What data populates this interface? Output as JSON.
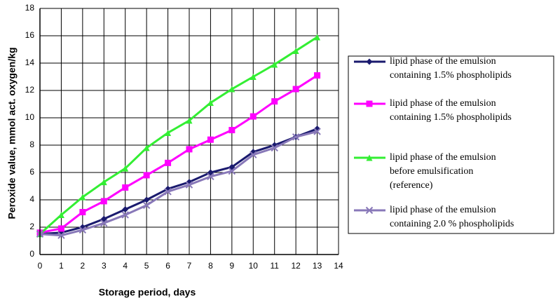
{
  "chart_data": {
    "type": "line",
    "x_label": "Storage period, days",
    "y_label": "Peroxide value, mmol act. oxygen/kg",
    "x": [
      0,
      1,
      2,
      3,
      4,
      5,
      6,
      7,
      8,
      9,
      10,
      11,
      12,
      13,
      14
    ],
    "xlim": [
      0,
      14
    ],
    "xticks": [
      0,
      1,
      2,
      3,
      4,
      5,
      6,
      7,
      8,
      9,
      10,
      11,
      12,
      13,
      14
    ],
    "ylim": [
      0,
      18
    ],
    "yticks": [
      0,
      2,
      4,
      6,
      8,
      10,
      12,
      14,
      16,
      18
    ],
    "grid": true,
    "legend": "right",
    "series": [
      {
        "name": "lipid phase of the emulsion\ncontaining 1.5% phospholipids",
        "color": "#1a1a6e",
        "marker": "diamond",
        "values": [
          1.5,
          1.6,
          2.0,
          2.6,
          3.3,
          4.0,
          4.8,
          5.3,
          6.0,
          6.4,
          7.5,
          8.0,
          8.6,
          9.2,
          null
        ]
      },
      {
        "name": "lipid phase of the emulsion\ncontaining 1.5% phospholipids",
        "color": "#ff00ff",
        "marker": "square",
        "values": [
          1.6,
          1.9,
          3.1,
          3.9,
          4.9,
          5.8,
          6.7,
          7.7,
          8.4,
          9.1,
          10.1,
          11.2,
          12.1,
          13.1,
          null
        ]
      },
      {
        "name": "lipid phase of the emulsion\nbefore emulsification\n(reference)",
        "color": "#33ee33",
        "marker": "triangle",
        "values": [
          1.5,
          2.9,
          4.2,
          5.3,
          6.3,
          7.8,
          8.9,
          9.8,
          11.1,
          12.1,
          13.0,
          13.9,
          14.9,
          15.9,
          null
        ]
      },
      {
        "name": "lipid phase of the emulsion\ncontaining 2.0 % phospholipids",
        "color": "#8878b8",
        "marker": "x",
        "values": [
          1.5,
          1.4,
          1.8,
          2.3,
          2.9,
          3.6,
          4.6,
          5.1,
          5.7,
          6.1,
          7.3,
          7.8,
          8.6,
          9.0,
          null
        ]
      }
    ]
  }
}
